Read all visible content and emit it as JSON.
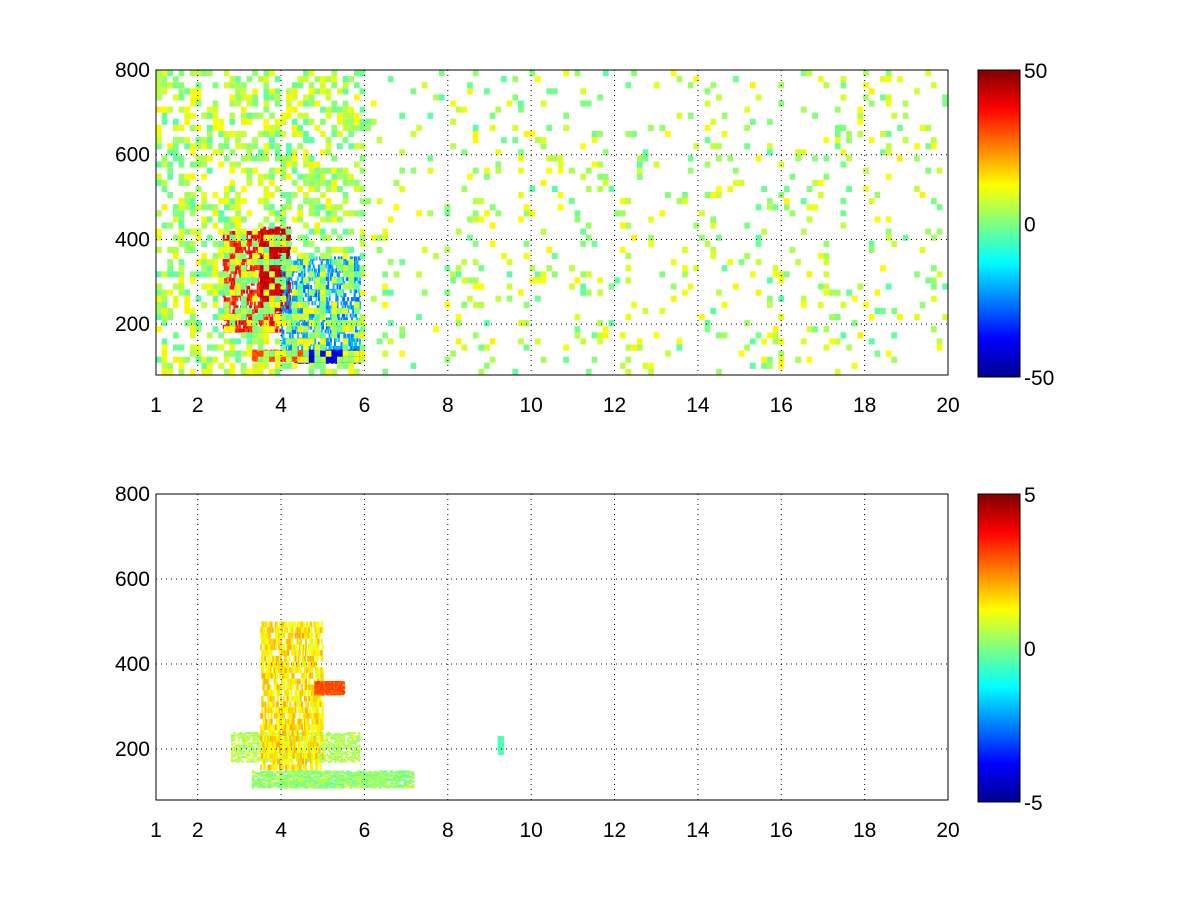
{
  "chart_data": [
    {
      "type": "heatmap",
      "title": "",
      "xlabel": "",
      "ylabel": "",
      "xlim": [
        1,
        20
      ],
      "ylim": [
        80,
        800
      ],
      "x_ticks": [
        "1",
        "2",
        "4",
        "6",
        "8",
        "10",
        "12",
        "14",
        "16",
        "18",
        "20"
      ],
      "y_ticks": [
        "200",
        "400",
        "600",
        "800"
      ],
      "grid": true,
      "colormap": "jet",
      "colorbar": {
        "min": -50,
        "max": 50,
        "ticks": [
          "-50",
          "0",
          "50"
        ]
      },
      "features": [
        {
          "name": "positive ridge",
          "x": [
            2.6,
            4.0
          ],
          "y": [
            180,
            420
          ],
          "value": 35
        },
        {
          "name": "strong positive band",
          "x": [
            3.5,
            4.2
          ],
          "y": [
            230,
            430
          ],
          "value": 42
        },
        {
          "name": "negative region",
          "x": [
            4.0,
            5.9
          ],
          "y": [
            110,
            360
          ],
          "value": -22
        },
        {
          "name": "negative band",
          "x": [
            4.3,
            5.9
          ],
          "y": [
            110,
            140
          ],
          "value": -40
        },
        {
          "name": "positive band",
          "x": [
            3.3,
            4.5
          ],
          "y": [
            115,
            140
          ],
          "value": 30
        },
        {
          "name": "low-frequency noise",
          "x": [
            1,
            20
          ],
          "y": [
            80,
            800
          ],
          "value": 5
        }
      ]
    },
    {
      "type": "heatmap",
      "title": "",
      "xlabel": "",
      "ylabel": "",
      "xlim": [
        1,
        20
      ],
      "ylim": [
        80,
        800
      ],
      "x_ticks": [
        "1",
        "2",
        "4",
        "6",
        "8",
        "10",
        "12",
        "14",
        "16",
        "18",
        "20"
      ],
      "y_ticks": [
        "200",
        "400",
        "600",
        "800"
      ],
      "grid": true,
      "colormap": "jet",
      "colorbar": {
        "min": -5,
        "max": 5,
        "ticks": [
          "-5",
          "0",
          "5"
        ]
      },
      "features": [
        {
          "name": "band near 130",
          "x": [
            3.3,
            7.2
          ],
          "y": [
            110,
            150
          ],
          "value": 0.2
        },
        {
          "name": "cluster near 200",
          "x": [
            2.8,
            5.9
          ],
          "y": [
            170,
            240
          ],
          "value": 0.5
        },
        {
          "name": "plume",
          "x": [
            3.5,
            5.0
          ],
          "y": [
            150,
            500
          ],
          "value": 1.5
        },
        {
          "name": "orange streak",
          "x": [
            4.8,
            5.5
          ],
          "y": [
            330,
            360
          ],
          "value": 3.0
        },
        {
          "name": "isolated point",
          "x": [
            9.2,
            9.3
          ],
          "y": [
            190,
            230
          ],
          "value": -0.5
        }
      ]
    }
  ]
}
